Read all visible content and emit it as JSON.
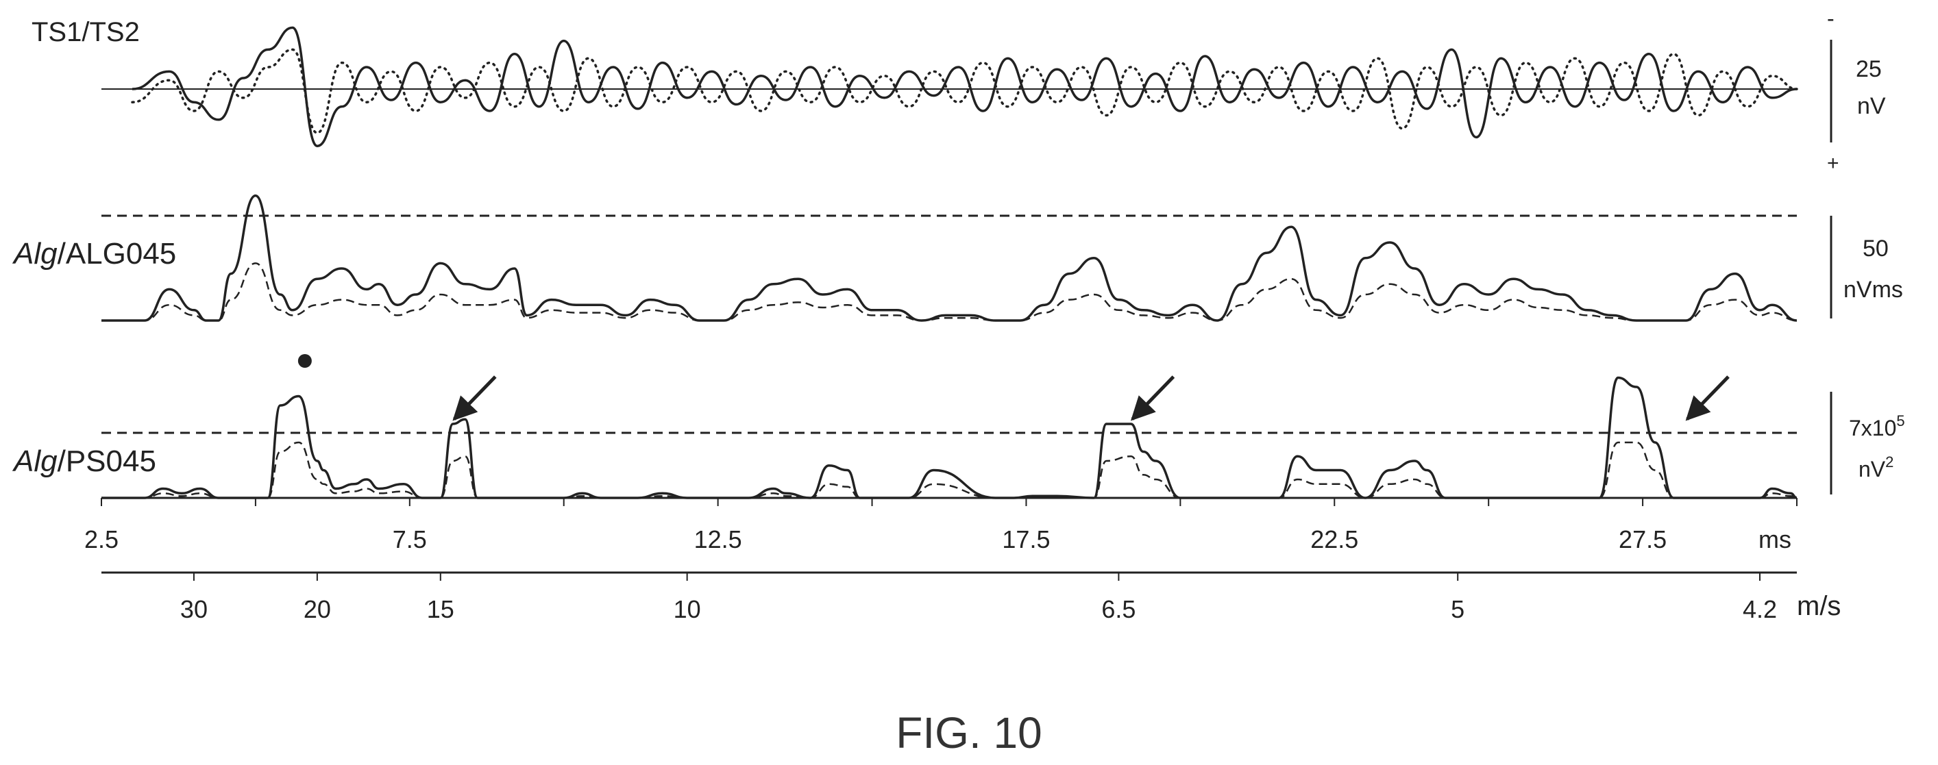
{
  "figure_caption": "FIG. 10",
  "colors": {
    "ink": "#222222",
    "caption": "#333333"
  },
  "chart_data": [
    {
      "type": "line",
      "panel_label": "TS1/TS2",
      "scale_bar": {
        "value": "25",
        "unit": "nV",
        "top_sign": "-",
        "bottom_sign": "+"
      },
      "x_range": [
        2.5,
        30
      ],
      "series": [
        {
          "style": "solid",
          "x": [
            3.0,
            3.6,
            4.0,
            4.4,
            4.8,
            5.2,
            5.6,
            6.0,
            6.4,
            6.8,
            7.2,
            7.6,
            8.0,
            8.4,
            8.8,
            9.2,
            9.6,
            10.0,
            10.4,
            10.8,
            11.2,
            11.6,
            12.0,
            12.4,
            12.8,
            13.2,
            13.6,
            14.0,
            14.4,
            14.8,
            15.2,
            15.6,
            16.0,
            16.4,
            16.8,
            17.2,
            17.6,
            18.0,
            18.4,
            18.8,
            19.2,
            19.6,
            20.0,
            20.4,
            20.8,
            21.2,
            21.6,
            22.0,
            22.4,
            22.8,
            23.2,
            23.6,
            24.0,
            24.4,
            24.8,
            25.2,
            25.6,
            26.0,
            26.4,
            26.8,
            27.2,
            27.6,
            28.0,
            28.4,
            28.8,
            29.2,
            29.6,
            30.0
          ],
          "y": [
            0,
            8,
            -6,
            -14,
            5,
            18,
            28,
            -26,
            -8,
            10,
            -5,
            12,
            -6,
            4,
            -10,
            16,
            -8,
            22,
            -6,
            10,
            -9,
            12,
            -4,
            8,
            -7,
            6,
            -5,
            10,
            -8,
            6,
            -4,
            8,
            -3,
            10,
            -10,
            14,
            -6,
            9,
            -5,
            14,
            -8,
            7,
            -10,
            15,
            -6,
            9,
            -4,
            12,
            -8,
            10,
            -6,
            8,
            -9,
            18,
            -22,
            14,
            -6,
            10,
            -8,
            12,
            -5,
            16,
            -10,
            8,
            -6,
            10,
            -4,
            0
          ]
        },
        {
          "style": "dotted",
          "x": [
            3.0,
            3.6,
            4.0,
            4.4,
            4.8,
            5.2,
            5.6,
            6.0,
            6.4,
            6.8,
            7.2,
            7.6,
            8.0,
            8.4,
            8.8,
            9.2,
            9.6,
            10.0,
            10.4,
            10.8,
            11.2,
            11.6,
            12.0,
            12.4,
            12.8,
            13.2,
            13.6,
            14.0,
            14.4,
            14.8,
            15.2,
            15.6,
            16.0,
            16.4,
            16.8,
            17.2,
            17.6,
            18.0,
            18.4,
            18.8,
            19.2,
            19.6,
            20.0,
            20.4,
            20.8,
            21.2,
            21.6,
            22.0,
            22.4,
            22.8,
            23.2,
            23.6,
            24.0,
            24.4,
            24.8,
            25.2,
            25.6,
            26.0,
            26.4,
            26.8,
            27.2,
            27.6,
            28.0,
            28.4,
            28.8,
            29.2,
            29.6,
            30.0
          ],
          "y": [
            -6,
            4,
            -10,
            8,
            -4,
            10,
            18,
            -20,
            12,
            -6,
            8,
            -10,
            10,
            -4,
            12,
            -8,
            10,
            -10,
            14,
            -8,
            10,
            -6,
            10,
            -6,
            8,
            -10,
            8,
            -6,
            10,
            -6,
            6,
            -8,
            8,
            -6,
            12,
            -8,
            10,
            -6,
            10,
            -12,
            10,
            -6,
            12,
            -8,
            8,
            -6,
            10,
            -10,
            8,
            -10,
            14,
            -18,
            10,
            -8,
            10,
            -12,
            12,
            -6,
            14,
            -8,
            12,
            -10,
            16,
            -12,
            8,
            -8,
            6,
            0
          ]
        }
      ]
    },
    {
      "type": "area",
      "panel_label_italic": "Alg",
      "panel_label_rest": "/ALG045",
      "scale_bar": {
        "value": "50",
        "unit": "nVms"
      },
      "threshold": 40,
      "series": [
        {
          "style": "solid",
          "x": [
            2.5,
            3.2,
            3.6,
            4.0,
            4.2,
            4.4,
            4.6,
            5.0,
            5.4,
            5.6,
            6.0,
            6.4,
            6.8,
            7.0,
            7.3,
            7.6,
            8.0,
            8.4,
            8.8,
            9.2,
            9.4,
            9.8,
            10.2,
            10.6,
            11.0,
            11.4,
            11.8,
            12.2,
            12.6,
            13.0,
            13.4,
            13.8,
            14.2,
            14.6,
            15.0,
            15.4,
            15.8,
            16.2,
            16.6,
            17.0,
            17.4,
            17.8,
            18.2,
            18.6,
            19.0,
            19.4,
            19.8,
            20.2,
            20.6,
            21.0,
            21.4,
            21.8,
            22.2,
            22.6,
            23.0,
            23.4,
            23.8,
            24.2,
            24.6,
            25.0,
            25.4,
            25.8,
            26.2,
            26.6,
            27.0,
            27.4,
            27.8,
            28.2,
            28.6,
            29.0,
            29.4,
            29.6,
            30.0
          ],
          "y": [
            0,
            0,
            12,
            4,
            0,
            0,
            18,
            48,
            10,
            4,
            16,
            20,
            12,
            14,
            6,
            10,
            22,
            14,
            12,
            20,
            2,
            8,
            6,
            6,
            2,
            8,
            6,
            0,
            0,
            8,
            14,
            16,
            10,
            12,
            4,
            4,
            0,
            2,
            2,
            0,
            0,
            6,
            18,
            24,
            8,
            4,
            2,
            6,
            0,
            14,
            26,
            36,
            8,
            2,
            24,
            30,
            20,
            6,
            14,
            10,
            16,
            12,
            10,
            4,
            2,
            0,
            0,
            0,
            12,
            18,
            4,
            6,
            0
          ]
        },
        {
          "style": "dashed",
          "x": [
            2.5,
            3.2,
            3.6,
            4.0,
            4.2,
            4.4,
            4.6,
            5.0,
            5.4,
            5.6,
            6.0,
            6.4,
            6.8,
            7.0,
            7.3,
            7.6,
            8.0,
            8.4,
            8.8,
            9.2,
            9.4,
            9.8,
            10.2,
            10.6,
            11.0,
            11.4,
            11.8,
            12.2,
            12.6,
            13.0,
            13.4,
            13.8,
            14.2,
            14.6,
            15.0,
            15.4,
            15.8,
            16.2,
            16.6,
            17.0,
            17.4,
            17.8,
            18.2,
            18.6,
            19.0,
            19.4,
            19.8,
            20.2,
            20.6,
            21.0,
            21.4,
            21.8,
            22.2,
            22.6,
            23.0,
            23.4,
            23.8,
            24.2,
            24.6,
            25.0,
            25.4,
            25.8,
            26.2,
            26.6,
            27.0,
            27.4,
            27.8,
            28.2,
            28.6,
            29.0,
            29.4,
            29.6,
            30.0
          ],
          "y": [
            0,
            0,
            6,
            2,
            0,
            0,
            8,
            22,
            4,
            2,
            6,
            8,
            6,
            6,
            2,
            4,
            10,
            6,
            6,
            8,
            1,
            4,
            3,
            3,
            1,
            4,
            3,
            0,
            0,
            4,
            6,
            7,
            5,
            6,
            2,
            2,
            0,
            1,
            1,
            0,
            0,
            3,
            8,
            10,
            4,
            2,
            1,
            3,
            0,
            6,
            12,
            16,
            4,
            1,
            10,
            14,
            10,
            3,
            6,
            4,
            8,
            5,
            4,
            2,
            1,
            0,
            0,
            0,
            6,
            8,
            2,
            3,
            0
          ]
        }
      ]
    },
    {
      "type": "area",
      "panel_label_italic": "Alg",
      "panel_label_rest": "/PS045",
      "scale_bar": {
        "value": "7x10",
        "superscript": "5",
        "unit": "nV",
        "unit_superscript": "2"
      },
      "threshold": 7,
      "x_label": "ms",
      "x_ticks": [
        "2.5",
        "7.5",
        "12.5",
        "17.5",
        "22.5",
        "27.5"
      ],
      "x_tick_values": [
        2.5,
        7.5,
        12.5,
        17.5,
        22.5,
        27.5
      ],
      "x_range": [
        2.5,
        30
      ],
      "velocity_axis_label": "m/s",
      "velocity_ticks": [
        "30",
        "20",
        "15",
        "10",
        "6.5",
        "5",
        "4.2"
      ],
      "velocity_tick_ms": [
        4.0,
        6.0,
        8.0,
        12.0,
        19.0,
        24.5,
        29.4
      ],
      "marker_dot_ms": 5.8,
      "arrow_ms": [
        8.0,
        19.0,
        28.0
      ],
      "series": [
        {
          "style": "solid",
          "x": [
            2.5,
            3.2,
            3.5,
            3.8,
            4.1,
            4.4,
            5.2,
            5.4,
            5.7,
            6.0,
            6.1,
            6.3,
            6.6,
            6.8,
            7.0,
            7.4,
            7.7,
            8.0,
            8.2,
            8.4,
            8.6,
            10.0,
            10.3,
            10.6,
            11.2,
            11.6,
            12.0,
            13.0,
            13.4,
            13.6,
            14.0,
            14.3,
            14.6,
            14.8,
            15.6,
            16.0,
            17.0,
            17.3,
            17.6,
            18.0,
            18.6,
            18.8,
            19.2,
            19.4,
            19.6,
            20.0,
            21.6,
            21.9,
            22.2,
            22.6,
            23.0,
            23.4,
            23.8,
            24.0,
            24.3,
            24.6,
            26.8,
            27.1,
            27.4,
            27.7,
            28.0,
            28.4,
            29.4,
            29.6,
            29.9,
            30.0
          ],
          "y": [
            0,
            0,
            1,
            0.5,
            1,
            0,
            0,
            10,
            11,
            4,
            3,
            1,
            1.5,
            2,
            1,
            1.5,
            0,
            0,
            8,
            8.5,
            0,
            0,
            0.5,
            0,
            0,
            0.5,
            0,
            0,
            1,
            0.5,
            0,
            3.5,
            3,
            0,
            0,
            3,
            0,
            0,
            0.2,
            0.2,
            0,
            8,
            8,
            5,
            4,
            0,
            0,
            4.5,
            3,
            3,
            0,
            3,
            4,
            3,
            0,
            0,
            0,
            13,
            12,
            6,
            0,
            0,
            0,
            1,
            0.5,
            0
          ]
        },
        {
          "style": "dashed",
          "x": [
            2.5,
            3.2,
            3.5,
            3.8,
            4.1,
            4.4,
            5.2,
            5.4,
            5.7,
            6.0,
            6.1,
            6.3,
            6.6,
            6.8,
            7.0,
            7.4,
            7.7,
            8.0,
            8.2,
            8.4,
            8.6,
            10.0,
            10.3,
            10.6,
            11.2,
            11.6,
            12.0,
            13.0,
            13.4,
            13.6,
            14.0,
            14.3,
            14.6,
            14.8,
            15.6,
            16.0,
            17.0,
            17.3,
            17.6,
            18.0,
            18.6,
            18.8,
            19.2,
            19.4,
            19.6,
            20.0,
            21.6,
            21.9,
            22.2,
            22.6,
            23.0,
            23.4,
            23.8,
            24.0,
            24.3,
            24.6,
            26.8,
            27.1,
            27.4,
            27.7,
            28.0,
            28.4,
            29.4,
            29.6,
            29.9,
            30.0
          ],
          "y": [
            0,
            0,
            0.5,
            0.2,
            0.5,
            0,
            0,
            5,
            6,
            2,
            1.5,
            0.5,
            0.7,
            1,
            0.5,
            0.7,
            0,
            0,
            4,
            4.5,
            0,
            0,
            0.2,
            0,
            0,
            0.2,
            0,
            0,
            0.5,
            0.2,
            0,
            1.5,
            1.2,
            0,
            0,
            1.5,
            0,
            0,
            0.1,
            0.1,
            0,
            4,
            4.5,
            2.5,
            2,
            0,
            0,
            2,
            1.5,
            1.5,
            0,
            1.5,
            2,
            1.5,
            0,
            0,
            0,
            6,
            6,
            3,
            0,
            0,
            0,
            0.5,
            0.2,
            0
          ]
        }
      ]
    }
  ]
}
